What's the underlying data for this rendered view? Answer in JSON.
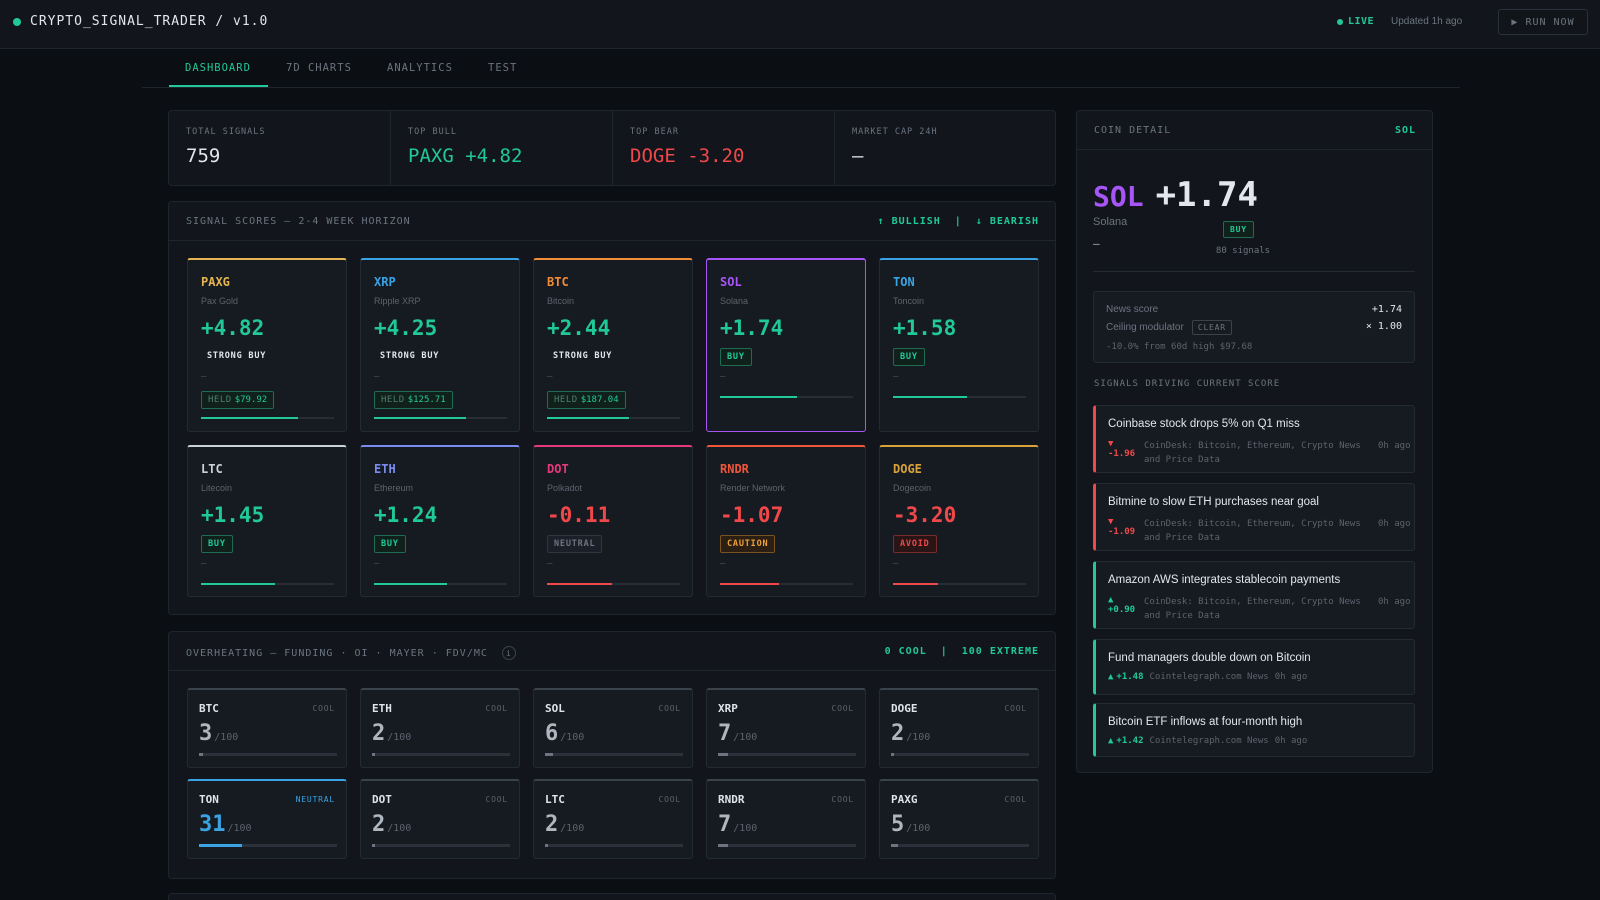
{
  "header": {
    "title": "CRYPTO_SIGNAL_TRADER / v1.0",
    "live_label": "LIVE",
    "updated": "Updated 1h ago",
    "run_label": "▶ RUN NOW"
  },
  "tabs": [
    {
      "label": "DASHBOARD",
      "active": true
    },
    {
      "label": "7D CHARTS",
      "active": false
    },
    {
      "label": "ANALYTICS",
      "active": false
    },
    {
      "label": "TEST",
      "active": false
    }
  ],
  "stats": {
    "total_signals": {
      "label": "TOTAL SIGNALS",
      "value": "759"
    },
    "top_bull": {
      "label": "TOP BULL",
      "value": "PAXG +4.82"
    },
    "top_bear": {
      "label": "TOP BEAR",
      "value": "DOGE -3.20"
    },
    "market_cap": {
      "label": "MARKET CAP 24H",
      "value": "—"
    }
  },
  "signals": {
    "title": "SIGNAL SCORES — 2-4 WEEK HORIZON",
    "legend_bull": "↑ BULLISH",
    "legend_sep": "|",
    "legend_bear": "↓ BEARISH",
    "cards": [
      {
        "symbol": "PAXG",
        "name": "Pax Gold",
        "score": "+4.82",
        "badge": "STRONG BUY",
        "dash": "—",
        "held_label": "HELD",
        "held_value": "$79.92",
        "level": 0.73,
        "color": "#e6b450"
      },
      {
        "symbol": "XRP",
        "name": "Ripple XRP",
        "score": "+4.25",
        "badge": "STRONG BUY",
        "dash": "—",
        "held_label": "HELD",
        "held_value": "$125.71",
        "level": 0.69,
        "color": "#3aa3e3"
      },
      {
        "symbol": "BTC",
        "name": "Bitcoin",
        "score": "+2.44",
        "badge": "STRONG BUY",
        "dash": "—",
        "held_label": "HELD",
        "held_value": "$187.04",
        "level": 0.62,
        "color": "#f28c38"
      },
      {
        "symbol": "SOL",
        "name": "Solana",
        "score": "+1.74",
        "badge": "BUY",
        "dash": "—",
        "held_label": "",
        "held_value": "",
        "level": 0.58,
        "color": "#a855f7"
      },
      {
        "symbol": "TON",
        "name": "Toncoin",
        "score": "+1.58",
        "badge": "BUY",
        "dash": "—",
        "held_label": "",
        "held_value": "",
        "level": 0.56,
        "color": "#3aa3e3"
      },
      {
        "symbol": "LTC",
        "name": "Litecoin",
        "score": "+1.45",
        "badge": "BUY",
        "dash": "—",
        "held_label": "",
        "held_value": "",
        "level": 0.56,
        "color": "#c9d1d9"
      },
      {
        "symbol": "ETH",
        "name": "Ethereum",
        "score": "+1.24",
        "badge": "BUY",
        "dash": "—",
        "held_label": "",
        "held_value": "",
        "level": 0.55,
        "color": "#7b8cf0"
      },
      {
        "symbol": "DOT",
        "name": "Polkadot",
        "score": "-0.11",
        "badge": "NEUTRAL",
        "dash": "—",
        "held_label": "",
        "held_value": "",
        "level": 0.49,
        "color": "#e6397a"
      },
      {
        "symbol": "RNDR",
        "name": "Render Network",
        "score": "-1.07",
        "badge": "CAUTION",
        "dash": "—",
        "held_label": "",
        "held_value": "",
        "level": 0.44,
        "color": "#f0573a"
      },
      {
        "symbol": "DOGE",
        "name": "Dogecoin",
        "score": "-3.20",
        "badge": "AVOID",
        "dash": "—",
        "held_label": "",
        "held_value": "",
        "level": 0.34,
        "color": "#d9a23a"
      }
    ]
  },
  "overheating": {
    "title": "OVERHEATING — FUNDING · OI · MAYER · FDV/MC",
    "info_icon": "i",
    "legend_cool": "0 COOL",
    "legend_sep": "|",
    "legend_extreme": "100 EXTREME",
    "denominator": "/100",
    "tiles": [
      {
        "symbol": "BTC",
        "status": "COOL",
        "value": "3",
        "level": 0.03
      },
      {
        "symbol": "ETH",
        "status": "COOL",
        "value": "2",
        "level": 0.02
      },
      {
        "symbol": "SOL",
        "status": "COOL",
        "value": "6",
        "level": 0.06
      },
      {
        "symbol": "XRP",
        "status": "COOL",
        "value": "7",
        "level": 0.07
      },
      {
        "symbol": "DOGE",
        "status": "COOL",
        "value": "2",
        "level": 0.02
      },
      {
        "symbol": "TON",
        "status": "NEUTRAL",
        "value": "31",
        "level": 0.31
      },
      {
        "symbol": "DOT",
        "status": "COOL",
        "value": "2",
        "level": 0.02
      },
      {
        "symbol": "LTC",
        "status": "COOL",
        "value": "2",
        "level": 0.02
      },
      {
        "symbol": "RNDR",
        "status": "COOL",
        "value": "7",
        "level": 0.07
      },
      {
        "symbol": "PAXG",
        "status": "COOL",
        "value": "5",
        "level": 0.05
      }
    ]
  },
  "coin_detail": {
    "title": "COIN DETAIL",
    "symbol_tag": "SOL",
    "symbol": "SOL",
    "score": "+1.74",
    "name": "Solana",
    "badge": "BUY",
    "dash": "—",
    "signal_count": "80 signals",
    "news_score_label": "News score",
    "news_score_value": "+1.74",
    "ceiling_label": "Ceiling modulator",
    "ceiling_badge": "CLEAR",
    "ceiling_value": "× 1.00",
    "from_high": "-10.0% from 60d high $97.68",
    "drivers_title": "SIGNALS DRIVING CURRENT SCORE",
    "drivers": [
      {
        "headline": "Coinbase stock drops 5% on Q1 miss",
        "arrow": "▼",
        "score": "-1.96",
        "source": "CoinDesk: Bitcoin, Ethereum, Crypto News and Price Data",
        "age": "0h ago",
        "direction": "down"
      },
      {
        "headline": "Bitmine to slow ETH purchases near goal",
        "arrow": "▼",
        "score": "-1.09",
        "source": "CoinDesk: Bitcoin, Ethereum, Crypto News and Price Data",
        "age": "0h ago",
        "direction": "down"
      },
      {
        "headline": "Amazon AWS integrates stablecoin payments",
        "arrow": "▲",
        "score": "+0.90",
        "source": "CoinDesk: Bitcoin, Ethereum, Crypto News and Price Data",
        "age": "0h ago",
        "direction": "up"
      },
      {
        "headline": "Fund managers double down on Bitcoin",
        "arrow": "▲",
        "score": "+1.48",
        "source": "Cointelegraph.com News",
        "age": "0h ago",
        "direction": "up"
      },
      {
        "headline": "Bitcoin ETF inflows at four-month high",
        "arrow": "▲",
        "score": "+1.42",
        "source": "Cointelegraph.com News",
        "age": "0h ago",
        "direction": "up"
      }
    ]
  },
  "colors": {
    "accent": "#20c997",
    "bull": "#20c997",
    "bear": "#f0484a",
    "caution": "#f0a03a",
    "sol": "#a855f7",
    "ton_meter": "#3aa3e3"
  }
}
